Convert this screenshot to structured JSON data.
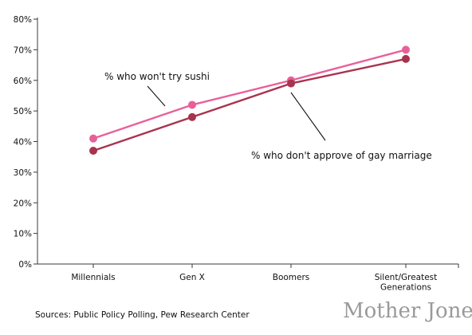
{
  "chart_data": {
    "type": "line",
    "categories": [
      [
        "Millennials"
      ],
      [
        "Gen X"
      ],
      [
        "Boomers"
      ],
      [
        "Silent/Greatest",
        "Generations"
      ]
    ],
    "y_ticks": [
      "0%",
      "10%",
      "20%",
      "30%",
      "40%",
      "50%",
      "60%",
      "70%",
      "80%"
    ],
    "ylim": [
      0,
      80
    ],
    "grid": false,
    "series": [
      {
        "name": "% who won't try sushi",
        "values": [
          41,
          52,
          60,
          70
        ],
        "color": "#e8609a"
      },
      {
        "name": "% who don't approve of gay marriage",
        "values": [
          37,
          48,
          59,
          67
        ],
        "color": "#a8334d"
      }
    ],
    "axis_color": "#3a3a3a",
    "source": "Sources: Public Policy Polling, Pew Research Center",
    "brand": "Mother Jones"
  }
}
